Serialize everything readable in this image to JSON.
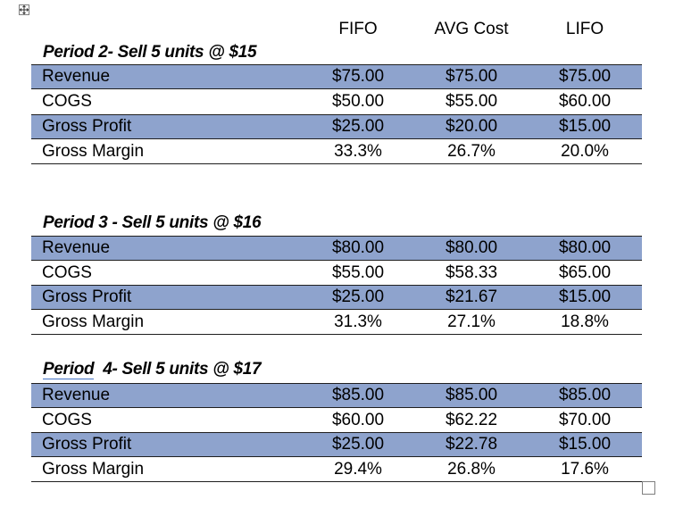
{
  "columns": {
    "fifo": "FIFO",
    "avg": "AVG Cost",
    "lifo": "LIFO"
  },
  "sections": [
    {
      "title": "Period 2- Sell 5 units @ $15",
      "rows": [
        {
          "label": "Revenue",
          "fifo": "$75.00",
          "avg": "$75.00",
          "lifo": "$75.00"
        },
        {
          "label": "COGS",
          "fifo": "$50.00",
          "avg": "$55.00",
          "lifo": "$60.00"
        },
        {
          "label": "Gross Profit",
          "fifo": "$25.00",
          "avg": "$20.00",
          "lifo": "$15.00"
        },
        {
          "label": "Gross Margin",
          "fifo": "33.3%",
          "avg": "26.7%",
          "lifo": "20.0%"
        }
      ]
    },
    {
      "title": "Period 3 - Sell 5 units @ $16",
      "rows": [
        {
          "label": "Revenue",
          "fifo": "$80.00",
          "avg": "$80.00",
          "lifo": "$80.00"
        },
        {
          "label": "COGS",
          "fifo": "$55.00",
          "avg": "$58.33",
          "lifo": "$65.00"
        },
        {
          "label": "Gross Profit",
          "fifo": "$25.00",
          "avg": "$21.67",
          "lifo": "$15.00"
        },
        {
          "label": "Gross Margin",
          "fifo": "31.3%",
          "avg": "27.1%",
          "lifo": "18.8%"
        }
      ]
    },
    {
      "title_word": "Period",
      "title_rest": "  4- Sell 5 units @ $17",
      "rows": [
        {
          "label": "Revenue",
          "fifo": "$85.00",
          "avg": "$85.00",
          "lifo": "$85.00"
        },
        {
          "label": "COGS",
          "fifo": "$60.00",
          "avg": "$62.22",
          "lifo": "$70.00"
        },
        {
          "label": "Gross Profit",
          "fifo": "$25.00",
          "avg": "$22.78",
          "lifo": "$15.00"
        },
        {
          "label": "Gross Margin",
          "fifo": "29.4%",
          "avg": "26.8%",
          "lifo": "17.6%"
        }
      ]
    }
  ],
  "icons": {
    "move_handle": "table-move-icon",
    "resize_handle": "table-resize-icon"
  }
}
